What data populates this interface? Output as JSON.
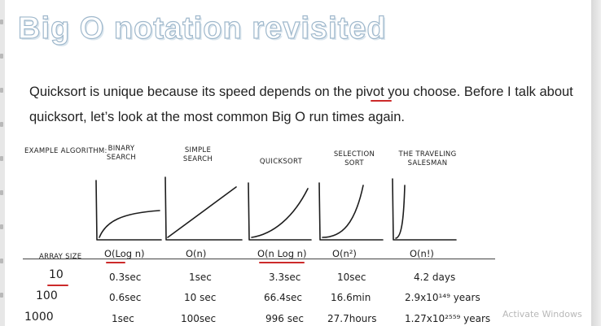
{
  "title": "Big O notation revisited",
  "intro": "Quicksort is unique because its speed depends on the pivot you choose. Before I talk about quicksort, let’s look at the most common Big O run times again.",
  "table": {
    "row_header": "EXAMPLE ALGORITHM:",
    "size_label": "ARRAY SIZE",
    "columns": [
      {
        "name": "BINARY SEARCH",
        "notation": "O(Log n)",
        "times": [
          "0.3sec",
          "0.6sec",
          "1sec"
        ]
      },
      {
        "name": "SIMPLE SEARCH",
        "notation": "O(n)",
        "times": [
          "1sec",
          "10 sec",
          "100sec"
        ]
      },
      {
        "name": "QUICKSORT",
        "notation": "O(n Log n)",
        "times": [
          "3.3sec",
          "66.4sec",
          "996 sec"
        ]
      },
      {
        "name": "SELECTION SORT",
        "notation": "O(n²)",
        "times": [
          "10sec",
          "16.6min",
          "27.7hours"
        ]
      },
      {
        "name": "THE TRAVELING SALESMAN",
        "notation": "O(n!)",
        "times": [
          "4.2 days",
          "2.9x10¹⁴⁹ years",
          "1.27x10²⁵⁵⁹ years"
        ]
      }
    ],
    "sizes": [
      "10",
      "100",
      "1000"
    ]
  },
  "watermark": "Activate Windows",
  "colors": {
    "title_outline": "#9fb8cc",
    "accent_red": "#cc2a2a",
    "ink": "#1d1d1d"
  }
}
